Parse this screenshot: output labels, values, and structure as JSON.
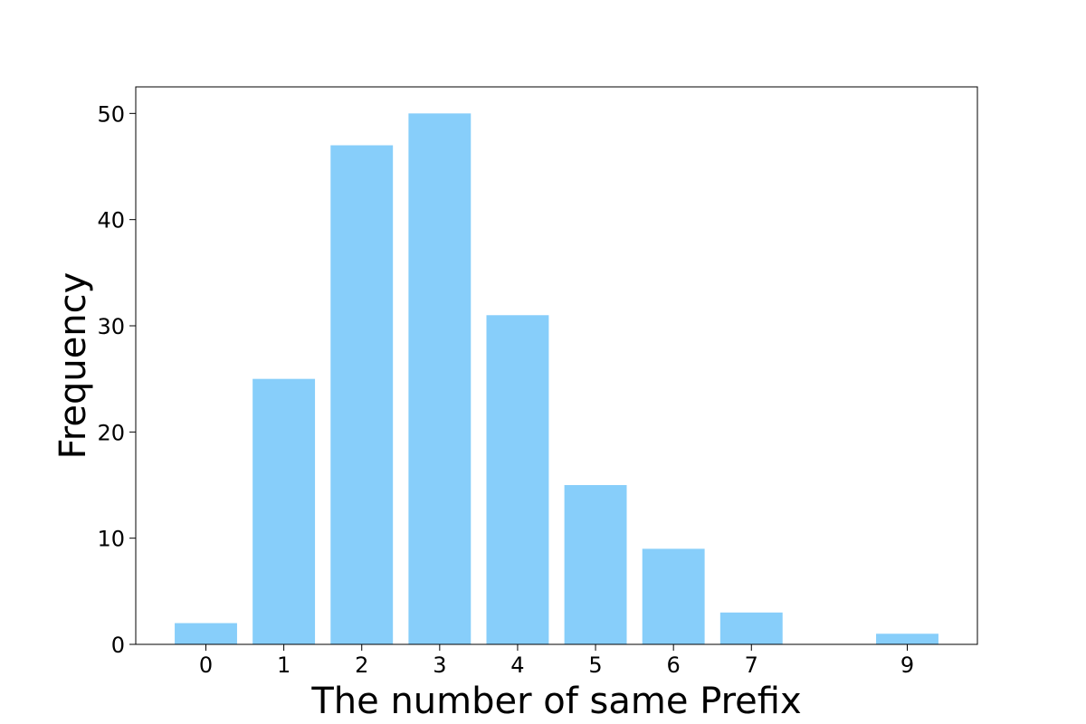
{
  "chart_data": {
    "type": "bar",
    "x": [
      0,
      1,
      2,
      3,
      4,
      5,
      6,
      7,
      9
    ],
    "values": [
      2,
      25,
      47,
      50,
      31,
      15,
      9,
      3,
      1
    ],
    "x_ticks": [
      0,
      1,
      2,
      3,
      4,
      5,
      6,
      7,
      9
    ],
    "y_ticks": [
      0,
      10,
      20,
      30,
      40,
      50
    ],
    "xlabel": "The number of same Prefix",
    "ylabel": "Frequency",
    "xlim": [
      -0.9,
      9.9
    ],
    "ylim": [
      0,
      52.5
    ],
    "bar_width": 0.8,
    "bar_color": "#87cefa",
    "grid": false,
    "legend": "none"
  }
}
